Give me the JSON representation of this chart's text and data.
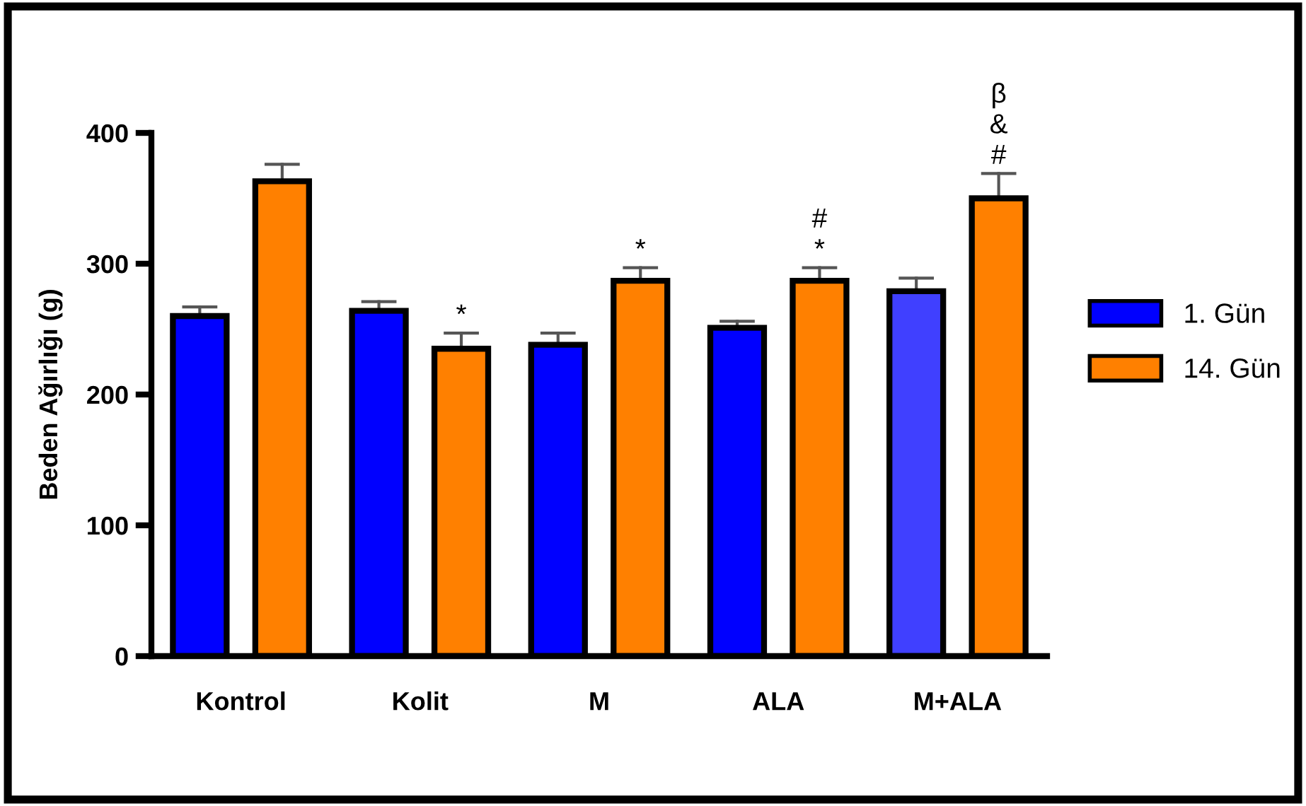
{
  "chart_data": {
    "type": "bar",
    "ylabel": "Beden Ağırlığı (g)",
    "categories": [
      "Kontrol",
      "Kolit",
      "M",
      "ALA",
      "M+ALA"
    ],
    "series": [
      {
        "name": "1. Gün",
        "color": "#0000ff",
        "colors": [
          "#0000ff",
          "#0000ff",
          "#0000ff",
          "#0000ff",
          "#4040ff"
        ],
        "values": [
          260,
          264,
          238,
          251,
          279
        ],
        "errors": [
          [
            260,
            267
          ],
          [
            264,
            271
          ],
          [
            238,
            247
          ],
          [
            251,
            256
          ],
          [
            279,
            289
          ]
        ]
      },
      {
        "name": "14. Gün",
        "color": "#ff8000",
        "values": [
          363,
          235,
          287,
          287,
          350
        ],
        "errors": [
          [
            363,
            376
          ],
          [
            235,
            247
          ],
          [
            287,
            297
          ],
          [
            287,
            297
          ],
          [
            350,
            369
          ]
        ],
        "value_labels": [
          null,
          "*",
          "*",
          "#\n*",
          "β\n&\n#"
        ]
      }
    ],
    "ylim": [
      0,
      400
    ],
    "yticks": [
      0,
      100,
      200,
      300,
      400
    ],
    "grid": false,
    "legend": "right"
  }
}
